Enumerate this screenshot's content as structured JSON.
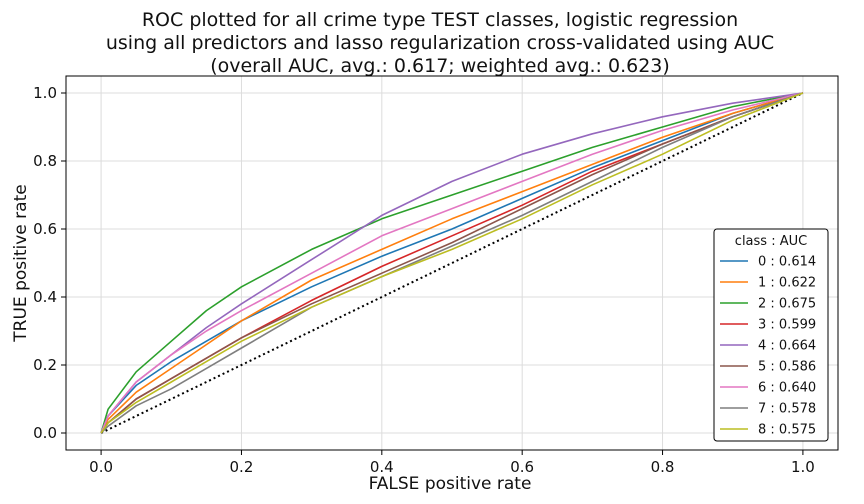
{
  "chart_data": {
    "type": "line",
    "title_lines": [
      "ROC plotted for all crime type TEST classes, logistic regression",
      "using all predictors and lasso regularization cross-validated using AUC",
      "(overall AUC, avg.: 0.617; weighted avg.: 0.623)"
    ],
    "xlabel": "FALSE positive rate",
    "ylabel": "TRUE positive rate",
    "xlim": [
      -0.05,
      1.05
    ],
    "ylim": [
      -0.05,
      1.05
    ],
    "x_ticks": [
      "0.0",
      "0.2",
      "0.4",
      "0.6",
      "0.8",
      "1.0"
    ],
    "y_ticks": [
      "0.0",
      "0.2",
      "0.4",
      "0.6",
      "0.8",
      "1.0"
    ],
    "grid": true,
    "legend": {
      "title": "class : AUC",
      "placement": "lower-right",
      "entries": [
        "0 : 0.614",
        "1 : 0.622",
        "2 : 0.675",
        "3 : 0.599",
        "4 : 0.664",
        "5 : 0.586",
        "6 : 0.640",
        "7 : 0.578",
        "8 : 0.575"
      ]
    },
    "x": [
      0.0,
      0.01,
      0.05,
      0.1,
      0.15,
      0.2,
      0.3,
      0.4,
      0.5,
      0.6,
      0.7,
      0.8,
      0.9,
      1.0
    ],
    "diagonal": {
      "x": [
        0.0,
        1.0
      ],
      "y": [
        0.0,
        1.0
      ],
      "color": "#000000",
      "style": "dotted"
    },
    "series": [
      {
        "label": "0 : 0.614",
        "color": "#1f77b4",
        "values": [
          0.0,
          0.05,
          0.14,
          0.21,
          0.27,
          0.33,
          0.43,
          0.52,
          0.6,
          0.69,
          0.78,
          0.86,
          0.94,
          1.0
        ]
      },
      {
        "label": "1 : 0.622",
        "color": "#ff7f0e",
        "values": [
          0.0,
          0.04,
          0.12,
          0.19,
          0.26,
          0.33,
          0.45,
          0.54,
          0.63,
          0.71,
          0.79,
          0.87,
          0.94,
          1.0
        ]
      },
      {
        "label": "2 : 0.675",
        "color": "#2ca02c",
        "values": [
          0.0,
          0.07,
          0.18,
          0.27,
          0.36,
          0.43,
          0.54,
          0.63,
          0.7,
          0.77,
          0.84,
          0.9,
          0.96,
          1.0
        ]
      },
      {
        "label": "3 : 0.599",
        "color": "#d62728",
        "values": [
          0.0,
          0.03,
          0.1,
          0.16,
          0.22,
          0.28,
          0.39,
          0.49,
          0.58,
          0.67,
          0.77,
          0.85,
          0.93,
          1.0
        ]
      },
      {
        "label": "4 : 0.664",
        "color": "#9467bd",
        "values": [
          0.0,
          0.05,
          0.15,
          0.23,
          0.31,
          0.38,
          0.51,
          0.64,
          0.74,
          0.82,
          0.88,
          0.93,
          0.97,
          1.0
        ]
      },
      {
        "label": "5 : 0.586",
        "color": "#8c564b",
        "values": [
          0.0,
          0.03,
          0.1,
          0.16,
          0.22,
          0.28,
          0.38,
          0.47,
          0.56,
          0.66,
          0.76,
          0.85,
          0.93,
          1.0
        ]
      },
      {
        "label": "6 : 0.640",
        "color": "#e377c2",
        "values": [
          0.0,
          0.05,
          0.15,
          0.23,
          0.3,
          0.36,
          0.47,
          0.58,
          0.66,
          0.74,
          0.82,
          0.89,
          0.95,
          1.0
        ]
      },
      {
        "label": "7 : 0.578",
        "color": "#7f7f7f",
        "values": [
          0.0,
          0.02,
          0.08,
          0.13,
          0.19,
          0.25,
          0.37,
          0.46,
          0.55,
          0.64,
          0.74,
          0.84,
          0.93,
          1.0
        ]
      },
      {
        "label": "8 : 0.575",
        "color": "#bcbd22",
        "values": [
          0.0,
          0.03,
          0.09,
          0.15,
          0.21,
          0.27,
          0.37,
          0.46,
          0.54,
          0.63,
          0.73,
          0.82,
          0.92,
          1.0
        ]
      }
    ]
  }
}
